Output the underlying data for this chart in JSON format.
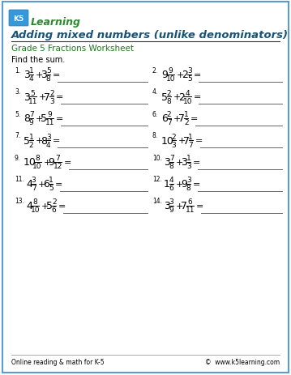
{
  "title": "Adding mixed numbers (unlike denominators)",
  "subtitle": "Grade 5 Fractions Worksheet",
  "instruction": "Find the sum.",
  "footer_left": "Online reading & math for K-5",
  "footer_right": "©  www.k5learning.com",
  "title_color": "#1a5276",
  "subtitle_color": "#1a7a1a",
  "border_color": "#5b9bd5",
  "background": "#ffffff",
  "problems": [
    {
      "num": "1.",
      "w1": "3",
      "n1": "1",
      "d1": "4",
      "w2": "3",
      "n2": "5",
      "d2": "8"
    },
    {
      "num": "2.",
      "w1": "9",
      "n1": "9",
      "d1": "10",
      "w2": "2",
      "n2": "3",
      "d2": "5"
    },
    {
      "num": "3.",
      "w1": "3",
      "n1": "5",
      "d1": "11",
      "w2": "7",
      "n2": "2",
      "d2": "3"
    },
    {
      "num": "4.",
      "w1": "5",
      "n1": "2",
      "d1": "8",
      "w2": "2",
      "n2": "4",
      "d2": "10"
    },
    {
      "num": "5.",
      "w1": "8",
      "n1": "7",
      "d1": "9",
      "w2": "5",
      "n2": "9",
      "d2": "11"
    },
    {
      "num": "6.",
      "w1": "6",
      "n1": "2",
      "d1": "7",
      "w2": "7",
      "n2": "1",
      "d2": "2"
    },
    {
      "num": "7.",
      "w1": "5",
      "n1": "1",
      "d1": "2",
      "w2": "8",
      "n2": "3",
      "d2": "4"
    },
    {
      "num": "8.",
      "w1": "10",
      "n1": "2",
      "d1": "3",
      "w2": "7",
      "n2": "1",
      "d2": "7"
    },
    {
      "num": "9.",
      "w1": "10",
      "n1": "8",
      "d1": "10",
      "w2": "9",
      "n2": "7",
      "d2": "12"
    },
    {
      "num": "10.",
      "w1": "3",
      "n1": "7",
      "d1": "8",
      "w2": "3",
      "n2": "1",
      "d2": "3"
    },
    {
      "num": "11.",
      "w1": "4",
      "n1": "3",
      "d1": "7",
      "w2": "6",
      "n2": "1",
      "d2": "5"
    },
    {
      "num": "12.",
      "w1": "1",
      "n1": "4",
      "d1": "6",
      "w2": "9",
      "n2": "3",
      "d2": "8"
    },
    {
      "num": "13.",
      "w1": "4",
      "n1": "8",
      "d1": "10",
      "w2": "5",
      "n2": "2",
      "d2": "6"
    },
    {
      "num": "14.",
      "w1": "3",
      "n1": "3",
      "d1": "9",
      "w2": "7",
      "n2": "6",
      "d2": "11"
    }
  ]
}
